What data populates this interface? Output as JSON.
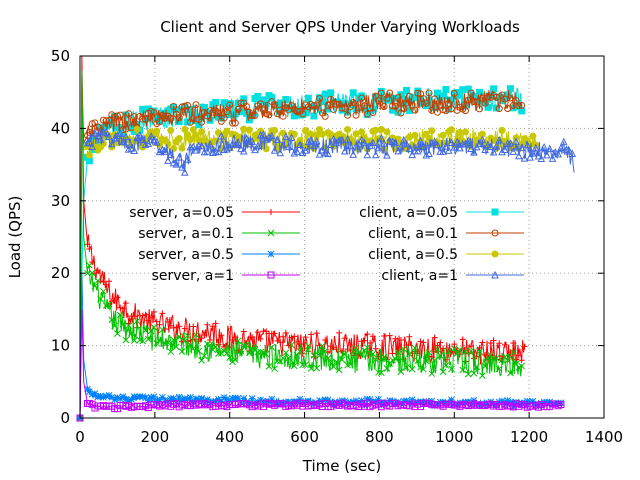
{
  "chart_data": {
    "type": "line",
    "title": "Client and Server QPS Under Varying Workloads",
    "xlabel": "Time (sec)",
    "ylabel": "Load (QPS)",
    "xlim": [
      0,
      1400
    ],
    "ylim": [
      0,
      50
    ],
    "xticks": [
      0,
      200,
      400,
      600,
      800,
      1000,
      1200,
      1400
    ],
    "yticks": [
      0,
      10,
      20,
      30,
      40,
      50
    ],
    "grid": true,
    "legend_placement": "center, two columns",
    "series": [
      {
        "name": "server, a=0.05",
        "color": "#ff0000",
        "marker": "plus",
        "points": [
          [
            0,
            0
          ],
          [
            5,
            50
          ],
          [
            10,
            30
          ],
          [
            20,
            24
          ],
          [
            40,
            21
          ],
          [
            60,
            19
          ],
          [
            80,
            17
          ],
          [
            100,
            16
          ],
          [
            150,
            14
          ],
          [
            200,
            13
          ],
          [
            250,
            12.5
          ],
          [
            300,
            12
          ],
          [
            350,
            12
          ],
          [
            400,
            11
          ],
          [
            500,
            10.5
          ],
          [
            600,
            10
          ],
          [
            700,
            10
          ],
          [
            800,
            9.8
          ],
          [
            900,
            9.5
          ],
          [
            1000,
            9.3
          ],
          [
            1100,
            9
          ],
          [
            1190,
            9
          ]
        ]
      },
      {
        "name": "server, a=0.1",
        "color": "#00c000",
        "marker": "cross",
        "points": [
          [
            0,
            0
          ],
          [
            5,
            48
          ],
          [
            10,
            25
          ],
          [
            20,
            20
          ],
          [
            40,
            18
          ],
          [
            60,
            16
          ],
          [
            80,
            14
          ],
          [
            100,
            13
          ],
          [
            150,
            12
          ],
          [
            200,
            11
          ],
          [
            250,
            10.5
          ],
          [
            300,
            10
          ],
          [
            350,
            9.5
          ],
          [
            400,
            9
          ],
          [
            500,
            8.5
          ],
          [
            600,
            8.5
          ],
          [
            700,
            8
          ],
          [
            800,
            8
          ],
          [
            900,
            8
          ],
          [
            1000,
            7.8
          ],
          [
            1100,
            7.5
          ],
          [
            1180,
            7.5
          ]
        ]
      },
      {
        "name": "server, a=0.5",
        "color": "#0080ff",
        "marker": "star",
        "points": [
          [
            0,
            0
          ],
          [
            5,
            20
          ],
          [
            10,
            8
          ],
          [
            20,
            4
          ],
          [
            40,
            3
          ],
          [
            80,
            2.8
          ],
          [
            150,
            2.7
          ],
          [
            200,
            2.6
          ],
          [
            300,
            2.5
          ],
          [
            400,
            2.4
          ],
          [
            500,
            2.3
          ],
          [
            600,
            2.3
          ],
          [
            700,
            2.2
          ],
          [
            800,
            2.2
          ],
          [
            900,
            2.1
          ],
          [
            1000,
            2.1
          ],
          [
            1100,
            2
          ],
          [
            1200,
            2
          ],
          [
            1290,
            2
          ]
        ]
      },
      {
        "name": "server, a=1",
        "color": "#c000ff",
        "marker": "square",
        "points": [
          [
            0,
            0
          ],
          [
            5,
            15
          ],
          [
            10,
            5
          ],
          [
            20,
            2
          ],
          [
            40,
            1.5
          ],
          [
            80,
            1.5
          ],
          [
            150,
            1.6
          ],
          [
            200,
            1.7
          ],
          [
            300,
            1.8
          ],
          [
            400,
            1.8
          ],
          [
            500,
            1.8
          ],
          [
            600,
            1.8
          ],
          [
            700,
            1.8
          ],
          [
            800,
            1.8
          ],
          [
            900,
            1.8
          ],
          [
            1000,
            1.8
          ],
          [
            1100,
            1.8
          ],
          [
            1200,
            1.7
          ],
          [
            1290,
            1.7
          ]
        ]
      },
      {
        "name": "client, a=0.05",
        "color": "#00e0e0",
        "marker": "filled-square",
        "points": [
          [
            0,
            0
          ],
          [
            5,
            20
          ],
          [
            10,
            30
          ],
          [
            20,
            36
          ],
          [
            40,
            38
          ],
          [
            80,
            40
          ],
          [
            150,
            41
          ],
          [
            200,
            41.5
          ],
          [
            300,
            42
          ],
          [
            400,
            42.5
          ],
          [
            500,
            43
          ],
          [
            600,
            43
          ],
          [
            700,
            43.5
          ],
          [
            800,
            43.5
          ],
          [
            900,
            44
          ],
          [
            1000,
            44
          ],
          [
            1100,
            44
          ],
          [
            1180,
            44
          ]
        ]
      },
      {
        "name": "client, a=0.1",
        "color": "#c04000",
        "marker": "circle",
        "points": [
          [
            0,
            0
          ],
          [
            5,
            47
          ],
          [
            10,
            38
          ],
          [
            20,
            39
          ],
          [
            40,
            39.5
          ],
          [
            80,
            40.5
          ],
          [
            150,
            41
          ],
          [
            200,
            41.5
          ],
          [
            300,
            42
          ],
          [
            400,
            42
          ],
          [
            500,
            42.5
          ],
          [
            600,
            43
          ],
          [
            700,
            43
          ],
          [
            800,
            43.5
          ],
          [
            900,
            43.5
          ],
          [
            1000,
            43.5
          ],
          [
            1100,
            44
          ],
          [
            1180,
            44
          ]
        ]
      },
      {
        "name": "client, a=0.5",
        "color": "#c8c800",
        "marker": "filled-circle",
        "points": [
          [
            0,
            0
          ],
          [
            5,
            40
          ],
          [
            10,
            37
          ],
          [
            20,
            37.5
          ],
          [
            40,
            38
          ],
          [
            80,
            38.5
          ],
          [
            150,
            38.5
          ],
          [
            200,
            38.5
          ],
          [
            300,
            38.5
          ],
          [
            400,
            38.5
          ],
          [
            500,
            38.5
          ],
          [
            600,
            38.5
          ],
          [
            700,
            38.5
          ],
          [
            800,
            38.5
          ],
          [
            900,
            38.5
          ],
          [
            1000,
            38.5
          ],
          [
            1100,
            38.5
          ],
          [
            1200,
            38
          ],
          [
            1220,
            38
          ]
        ]
      },
      {
        "name": "client, a=1",
        "color": "#4169e1",
        "marker": "triangle",
        "points": [
          [
            0,
            0
          ],
          [
            5,
            43
          ],
          [
            10,
            38
          ],
          [
            20,
            38
          ],
          [
            40,
            39
          ],
          [
            80,
            38.5
          ],
          [
            150,
            38
          ],
          [
            200,
            38
          ],
          [
            280,
            35
          ],
          [
            300,
            37
          ],
          [
            400,
            38
          ],
          [
            500,
            38
          ],
          [
            600,
            37.5
          ],
          [
            700,
            37.5
          ],
          [
            800,
            37.5
          ],
          [
            900,
            37.5
          ],
          [
            1000,
            37.5
          ],
          [
            1100,
            37.5
          ],
          [
            1200,
            37
          ],
          [
            1300,
            37
          ],
          [
            1320,
            35
          ]
        ]
      }
    ]
  }
}
